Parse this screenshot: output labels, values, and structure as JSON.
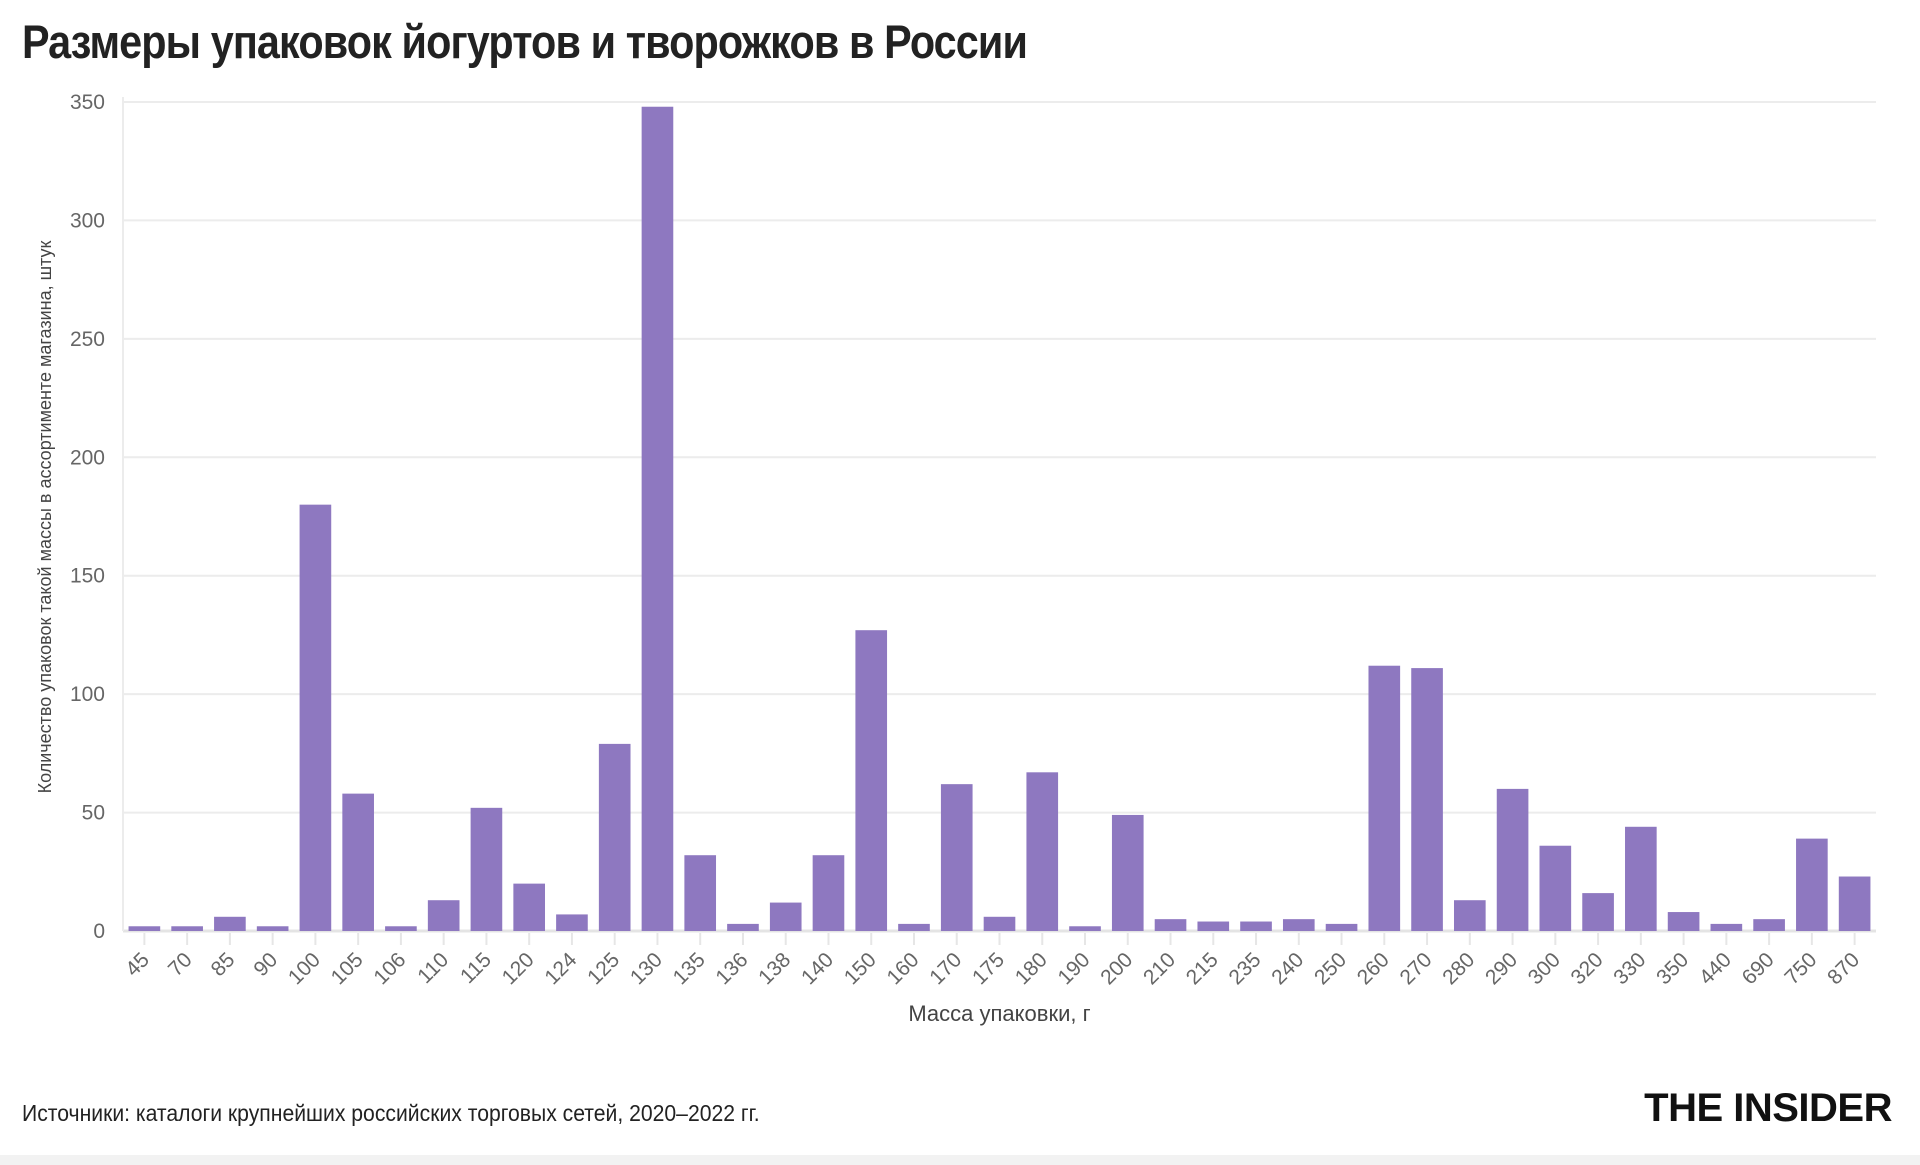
{
  "title": "Размеры упаковок йогуртов и творожков в России",
  "source": "Источники: каталоги крупнейших российских торговых сетей, 2020–2022 гг.",
  "logo": "THE INSIDER",
  "chart_data": {
    "type": "bar",
    "title": "Размеры упаковок йогуртов и творожков в России",
    "xlabel": "Масса упаковки, г",
    "ylabel": "Количество упаковок такой массы в ассортименте магазина, штук",
    "ylim": [
      0,
      350
    ],
    "yticks": [
      0,
      50,
      100,
      150,
      200,
      250,
      300,
      350
    ],
    "grid": true,
    "bar_color": "#8e78c0",
    "categories": [
      "45",
      "70",
      "85",
      "90",
      "100",
      "105",
      "106",
      "110",
      "115",
      "120",
      "124",
      "125",
      "130",
      "135",
      "136",
      "138",
      "140",
      "150",
      "160",
      "170",
      "175",
      "180",
      "190",
      "200",
      "210",
      "215",
      "235",
      "240",
      "250",
      "260",
      "270",
      "280",
      "290",
      "300",
      "320",
      "330",
      "350",
      "440",
      "690",
      "750",
      "870"
    ],
    "values": [
      2,
      2,
      6,
      2,
      180,
      58,
      2,
      13,
      52,
      20,
      7,
      79,
      348,
      32,
      3,
      12,
      32,
      127,
      3,
      62,
      6,
      67,
      2,
      49,
      5,
      4,
      4,
      5,
      3,
      112,
      111,
      13,
      60,
      36,
      16,
      44,
      8,
      3,
      5,
      39,
      23
    ]
  }
}
